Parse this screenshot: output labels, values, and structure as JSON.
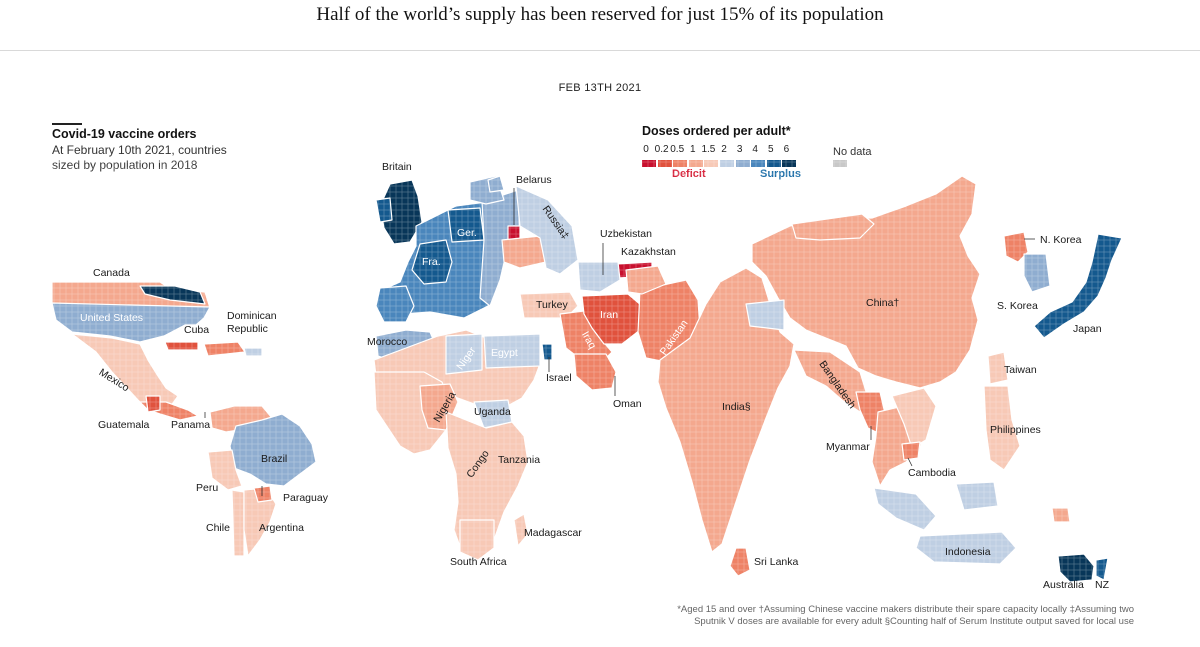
{
  "headline": "Half of the world’s supply has been reserved for just 15% of its population",
  "date": "FEB 13TH 2021",
  "intro": {
    "title": "Covid-19 vaccine orders",
    "subtitle_1": "At February 10th 2021, countries",
    "subtitle_2": "sized by population in 2018"
  },
  "legend": {
    "title": "Doses ordered per adult*",
    "ticks": [
      "0",
      "0.2",
      "0.5",
      "1",
      "1.5",
      "2",
      "3",
      "4",
      "5",
      "6"
    ],
    "colors": [
      "#c8102e",
      "#e0523d",
      "#ee8266",
      "#f4a88e",
      "#f7c9b6",
      "#bfcfe3",
      "#8fadd0",
      "#4a86bc",
      "#14598e",
      "#083659"
    ],
    "no_data_label": "No data",
    "no_data_color": "#c8c8c8",
    "deficit_label": "Deficit",
    "surplus_label": "Surplus",
    "deficit_color": "#d7263d",
    "surplus_color": "#1f6fa8"
  },
  "countries": {
    "canada": "Canada",
    "united_states": "United States",
    "mexico": "Mexico",
    "cuba": "Cuba",
    "dominican_republic_1": "Dominican",
    "dominican_republic_2": "Republic",
    "guatemala": "Guatemala",
    "panama": "Panama",
    "brazil": "Brazil",
    "peru": "Peru",
    "paraguay": "Paraguay",
    "chile": "Chile",
    "argentina": "Argentina",
    "britain": "Britain",
    "france": "Fra.",
    "germany": "Ger.",
    "belarus": "Belarus",
    "russia": "Russia‡",
    "morocco": "Morocco",
    "niger": "Niger",
    "egypt": "Egypt",
    "israel": "Israel",
    "turkey": "Turkey",
    "iran": "Iran",
    "iraq": "Iraq",
    "oman": "Oman",
    "uzbekistan": "Uzbekistan",
    "kazakhstan": "Kazakhstan",
    "pakistan": "Pakistan",
    "nigeria": "Nigeria",
    "uganda": "Uganda",
    "congo": "Congo",
    "tanzania": "Tanzania",
    "madagascar": "Madagascar",
    "south_africa": "South Africa",
    "india": "India§",
    "sri_lanka": "Sri Lanka",
    "bangladesh": "Bangladesh",
    "myanmar": "Myanmar",
    "cambodia": "Cambodia",
    "china": "China†",
    "n_korea": "N. Korea",
    "s_korea": "S. Korea",
    "japan": "Japan",
    "taiwan": "Taiwan",
    "philippines": "Philippines",
    "indonesia": "Indonesia",
    "australia": "Australia",
    "nz": "NZ"
  },
  "footnote_1": "*Aged 15 and over †Assuming Chinese vaccine makers distribute their spare capacity locally ‡Assuming two",
  "footnote_2": "Sputnik V doses are available for every adult §Counting half of Serum Institute output saved for local use"
}
